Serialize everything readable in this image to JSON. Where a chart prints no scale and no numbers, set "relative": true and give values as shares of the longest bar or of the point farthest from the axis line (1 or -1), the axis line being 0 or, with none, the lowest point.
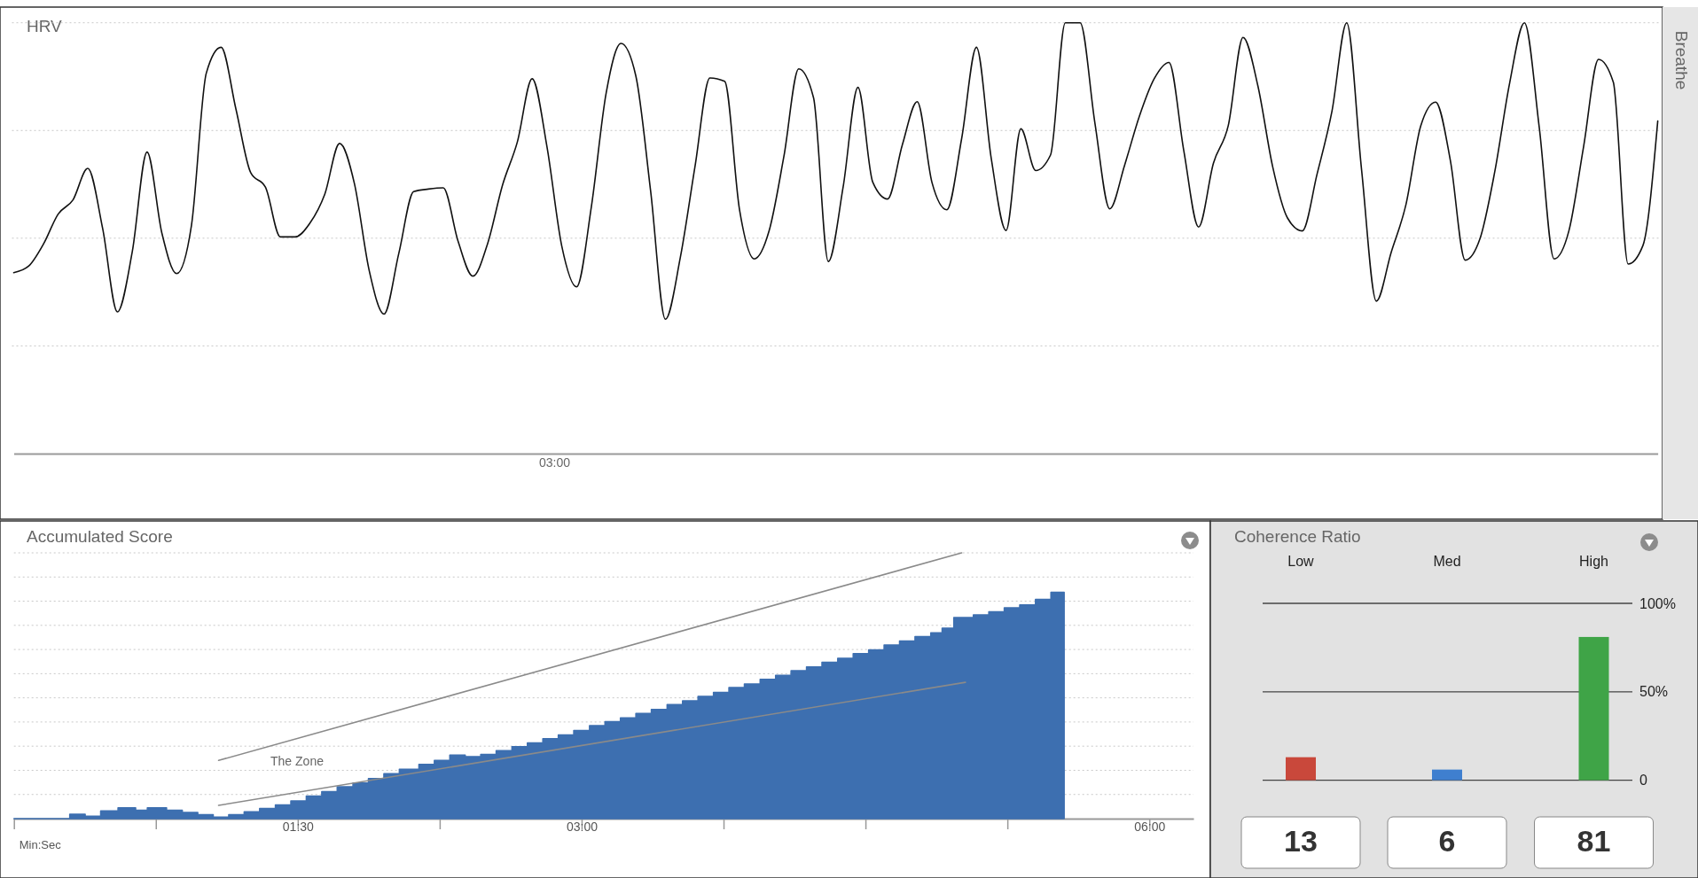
{
  "chart_data": [
    {
      "type": "line",
      "title": "HRV",
      "annotations": [
        "03:00",
        "Breathe"
      ],
      "relative": true,
      "grid": "y",
      "categories": [
        null,
        null,
        null,
        null,
        null,
        null,
        null,
        null,
        null,
        null,
        null,
        null,
        null,
        null,
        null,
        null,
        null,
        null,
        null,
        null,
        null,
        null,
        null,
        null,
        null,
        null,
        null,
        null,
        null,
        null,
        null,
        null,
        null,
        null,
        null,
        null,
        null,
        null,
        null,
        null,
        null,
        null,
        null,
        null,
        null,
        null,
        null,
        null,
        null,
        null,
        null,
        null,
        null,
        null,
        null,
        null,
        null,
        null,
        null,
        null,
        null,
        null,
        null,
        null,
        null,
        null,
        null,
        null,
        null,
        null,
        null,
        null,
        null,
        null,
        null,
        null,
        null,
        null,
        null,
        null,
        null,
        null,
        null,
        null,
        null,
        null,
        null,
        null,
        null,
        null,
        null,
        null,
        null,
        null,
        null,
        null,
        null,
        null,
        null,
        null,
        null,
        null,
        null,
        null,
        null,
        null,
        null,
        null,
        null,
        null,
        null,
        null
      ],
      "series": [
        {
          "color": "#111111",
          "values": [
            0.42,
            0.435,
            0.486,
            0.556,
            0.589,
            0.662,
            0.523,
            0.329,
            0.468,
            0.7,
            0.512,
            0.418,
            0.53,
            0.883,
            0.943,
            0.8,
            0.652,
            0.618,
            0.503,
            0.503,
            0.535,
            0.602,
            0.72,
            0.627,
            0.425,
            0.324,
            0.465,
            0.608,
            0.614,
            0.617,
            0.493,
            0.412,
            0.488,
            0.623,
            0.723,
            0.87,
            0.713,
            0.482,
            0.387,
            0.573,
            0.837,
            0.952,
            0.877,
            0.61,
            0.312,
            0.454,
            0.667,
            0.872,
            0.864,
            0.567,
            0.452,
            0.517,
            0.69,
            0.893,
            0.826,
            0.446,
            0.619,
            0.85,
            0.63,
            0.591,
            0.717,
            0.817,
            0.629,
            0.566,
            0.731,
            0.943,
            0.685,
            0.518,
            0.754,
            0.657,
            0.693,
            1.0,
            1.0,
            0.767,
            0.568,
            0.669,
            0.783,
            0.87,
            0.908,
            0.703,
            0.526,
            0.674,
            0.761,
            0.966,
            0.854,
            0.666,
            0.547,
            0.517,
            0.649,
            0.794,
            1.0,
            0.66,
            0.354,
            0.467,
            0.578,
            0.761,
            0.816,
            0.68,
            0.449,
            0.499,
            0.655,
            0.86,
            1.0,
            0.757,
            0.452,
            0.517,
            0.714,
            0.915,
            0.862,
            0.44,
            0.483,
            0.772
          ]
        }
      ]
    },
    {
      "type": "area",
      "title": "Accumulated Score",
      "xlabel": "Min:Sec",
      "relative": true,
      "grid": "y",
      "xlim": [
        0,
        374
      ],
      "annotations": [
        "The Zone"
      ],
      "xticks": [
        {
          "value": 0,
          "label": null
        },
        {
          "value": 45,
          "label": null
        },
        {
          "value": 90,
          "label": "01:30"
        },
        {
          "value": 135,
          "label": null
        },
        {
          "value": 180,
          "label": "03:00"
        },
        {
          "value": 225,
          "label": null
        },
        {
          "value": 270,
          "label": null
        },
        {
          "value": 315,
          "label": null
        },
        {
          "value": 360,
          "label": "06:00"
        }
      ],
      "x": [
        0,
        17.7,
        22.6,
        27.5,
        33.0,
        38.6,
        42.3,
        48.4,
        53.4,
        58.3,
        63.2,
        68.1,
        73.0,
        77.9,
        82.9,
        87.8,
        92.7,
        97.6,
        102.5,
        107.5,
        112.4,
        117.3,
        122.2,
        128.4,
        133.3,
        138.2,
        143.1,
        148.0,
        152.9,
        157.9,
        162.8,
        167.7,
        172.6,
        177.5,
        182.5,
        187.4,
        192.3,
        197.2,
        202.1,
        207.1,
        212.0,
        216.9,
        221.8,
        226.7,
        231.6,
        236.6,
        241.5,
        246.4,
        251.3,
        256.2,
        261.2,
        266.1,
        271.0,
        275.9,
        280.8,
        285.7,
        290.7,
        294.3,
        298.0,
        304.2,
        309.1,
        314.0,
        318.9,
        323.9,
        328.8,
        333.0
      ],
      "series": [
        {
          "color": "#3d6fb0",
          "values": [
            0,
            0.017,
            0.009,
            0.029,
            0.041,
            0.032,
            0.041,
            0.032,
            0.023,
            0.015,
            0.006,
            0.015,
            0.026,
            0.038,
            0.052,
            0.067,
            0.085,
            0.102,
            0.12,
            0.134,
            0.151,
            0.169,
            0.186,
            0.204,
            0.219,
            0.239,
            0.233,
            0.242,
            0.256,
            0.271,
            0.285,
            0.301,
            0.315,
            0.332,
            0.35,
            0.365,
            0.379,
            0.396,
            0.411,
            0.429,
            0.443,
            0.46,
            0.475,
            0.493,
            0.507,
            0.524,
            0.539,
            0.557,
            0.571,
            0.588,
            0.603,
            0.621,
            0.635,
            0.653,
            0.668,
            0.685,
            0.699,
            0.717,
            0.757,
            0.767,
            0.778,
            0.793,
            0.804,
            0.825,
            0.852,
            0.852
          ]
        },
        {
          "type": "line",
          "color": "#8a8a8a",
          "x": [
            64.9,
            300.5
          ],
          "values": [
            0.219,
            1.0
          ]
        },
        {
          "type": "line",
          "color": "#8a8a8a",
          "x": [
            64.9,
            301.7
          ],
          "values": [
            0.05,
            0.513
          ]
        }
      ]
    },
    {
      "type": "bar",
      "title": "Coherence Ratio",
      "categories": [
        "Low",
        "Med",
        "High"
      ],
      "values": [
        13,
        6,
        81
      ],
      "colors": [
        "#c9483b",
        "#3f7fcf",
        "#3fa447"
      ],
      "ylim": [
        0,
        100
      ],
      "yticks": [
        0,
        {
          "value": 50,
          "label": "50%"
        },
        {
          "value": 100,
          "label": "100%"
        }
      ],
      "grid": "y",
      "data_labels": true
    }
  ]
}
